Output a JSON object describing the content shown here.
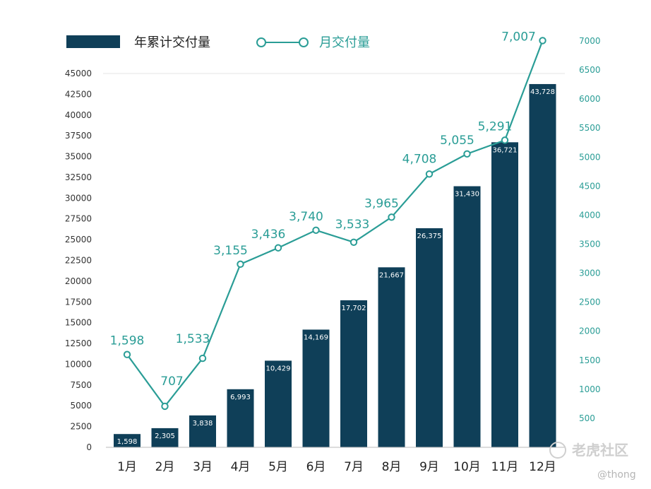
{
  "colors": {
    "bar": "#0f3f58",
    "line": "#2a9d96",
    "axis_left_text": "#333333",
    "axis_right_text": "#2a9d96"
  },
  "legend": {
    "bar_label": "年累计交付量",
    "line_label": "月交付量"
  },
  "watermark": {
    "brand": "老虎社区",
    "handle": "@thong"
  },
  "chart_data": {
    "type": "bar",
    "categories": [
      "1月",
      "2月",
      "3月",
      "4月",
      "5月",
      "6月",
      "7月",
      "8月",
      "9月",
      "10月",
      "11月",
      "12月"
    ],
    "series": [
      {
        "name": "年累计交付量",
        "type": "bar",
        "axis": "left",
        "values": [
          1598,
          2305,
          3838,
          6993,
          10429,
          14169,
          17702,
          21667,
          26375,
          31430,
          36721,
          43728
        ],
        "labels": [
          "1,598",
          "2,305",
          "3,838",
          "6,993",
          "10,429",
          "14,169",
          "17,702",
          "21,667",
          "26,375",
          "31,430",
          "36,721",
          "43,728"
        ]
      },
      {
        "name": "月交付量",
        "type": "line",
        "axis": "right",
        "values": [
          1598,
          707,
          1533,
          3155,
          3436,
          3740,
          3533,
          3965,
          4708,
          5055,
          5291,
          7007
        ],
        "labels": [
          "1,598",
          "707",
          "1,533",
          "3,155",
          "3,436",
          "3,740",
          "3,533",
          "3,965",
          "4,708",
          "5,055",
          "5,291",
          "7,007"
        ]
      }
    ],
    "y_left": {
      "ylim": [
        0,
        45000
      ],
      "ticks": [
        0,
        2500,
        5000,
        7500,
        10000,
        12500,
        15000,
        17500,
        20000,
        22500,
        25000,
        27500,
        30000,
        32500,
        35000,
        37500,
        40000,
        42500,
        45000
      ]
    },
    "y_right": {
      "ylim": [
        0,
        7000
      ],
      "ticks": [
        500,
        1000,
        1500,
        2000,
        2500,
        3000,
        3500,
        4000,
        4500,
        5000,
        5500,
        6000,
        6500,
        7000
      ]
    },
    "grid": false,
    "legend_position": "top-left"
  }
}
